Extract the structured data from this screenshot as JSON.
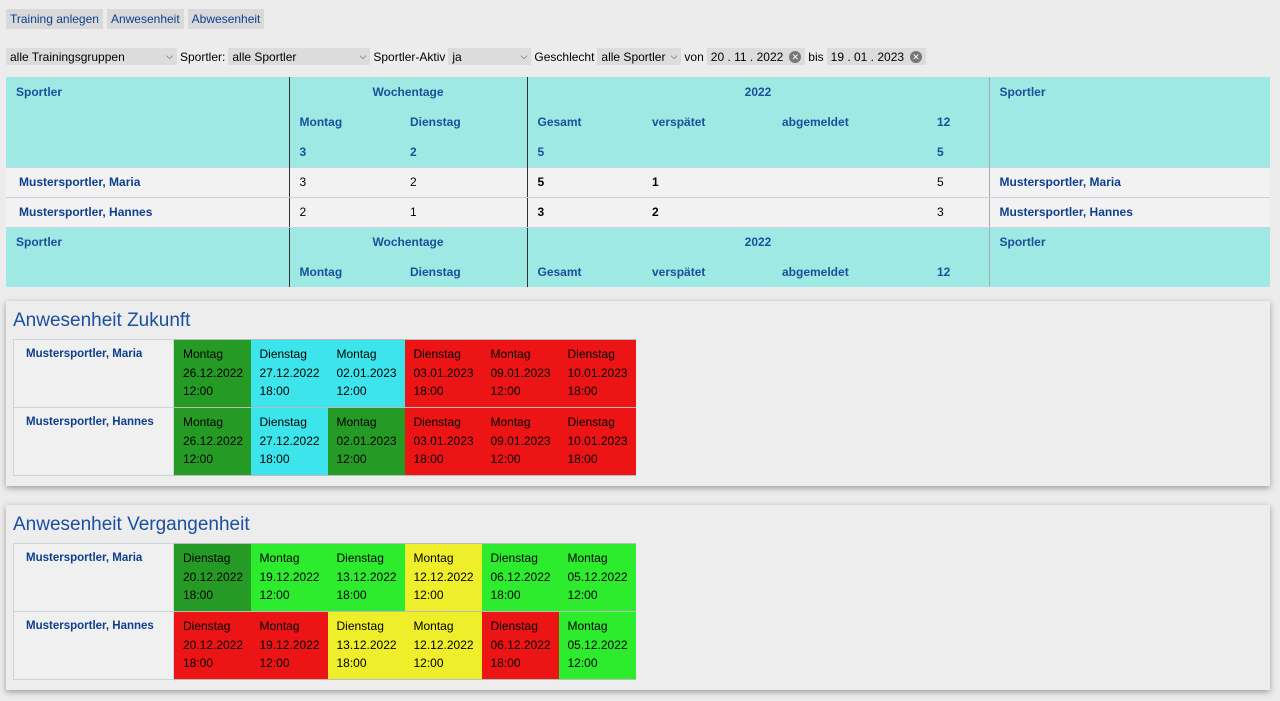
{
  "nav": {
    "buttons": [
      "Training anlegen",
      "Anwesenheit",
      "Abwesenheit"
    ]
  },
  "filters": {
    "group": "alle Trainingsgruppen",
    "sportler_label": "Sportler:",
    "sportler": "alle Sportler",
    "aktiv_label": "Sportler-Aktiv",
    "aktiv": "ja",
    "gender_label": "Geschlecht",
    "gender": "alle Sportler",
    "from_label": "von",
    "from": "20 . 11 . 2022",
    "to_label": "bis",
    "to": "19 . 01 . 2023"
  },
  "stats": {
    "header": {
      "sportler": "Sportler",
      "wochentage": "Wochentage",
      "year": "2022",
      "montag": "Montag",
      "dienstag": "Dienstag",
      "gesamt": "Gesamt",
      "verspaetet": "verspätet",
      "abgemeldet": "abgemeldet",
      "month": "12",
      "totals": {
        "montag": "3",
        "dienstag": "2",
        "gesamt": "5",
        "month": "5"
      }
    },
    "rows": [
      {
        "name": "Mustersportler, Maria",
        "montag": "3",
        "dienstag": "2",
        "gesamt": "5",
        "verspaetet": "1",
        "abgemeldet": "",
        "month": "5"
      },
      {
        "name": "Mustersportler, Hannes",
        "montag": "2",
        "dienstag": "1",
        "gesamt": "3",
        "verspaetet": "2",
        "abgemeldet": "",
        "month": "3"
      }
    ]
  },
  "future": {
    "title": "Anwesenheit Zukunft",
    "rows": [
      {
        "name": "Mustersportler, Maria",
        "slots": [
          {
            "day": "Montag",
            "date": "26.12.2022",
            "time": "12:00",
            "color": "#259b25"
          },
          {
            "day": "Dienstag",
            "date": "27.12.2022",
            "time": "18:00",
            "color": "#3be5eb"
          },
          {
            "day": "Montag",
            "date": "02.01.2023",
            "time": "12:00",
            "color": "#3be5eb"
          },
          {
            "day": "Dienstag",
            "date": "03.01.2023",
            "time": "18:00",
            "color": "#ec1414"
          },
          {
            "day": "Montag",
            "date": "09.01.2023",
            "time": "12:00",
            "color": "#ec1414"
          },
          {
            "day": "Dienstag",
            "date": "10.01.2023",
            "time": "18:00",
            "color": "#ec1414"
          }
        ]
      },
      {
        "name": "Mustersportler, Hannes",
        "slots": [
          {
            "day": "Montag",
            "date": "26.12.2022",
            "time": "12:00",
            "color": "#259b25"
          },
          {
            "day": "Dienstag",
            "date": "27.12.2022",
            "time": "18:00",
            "color": "#3be5eb"
          },
          {
            "day": "Montag",
            "date": "02.01.2023",
            "time": "12:00",
            "color": "#259b25"
          },
          {
            "day": "Dienstag",
            "date": "03.01.2023",
            "time": "18:00",
            "color": "#ec1414"
          },
          {
            "day": "Montag",
            "date": "09.01.2023",
            "time": "12:00",
            "color": "#ec1414"
          },
          {
            "day": "Dienstag",
            "date": "10.01.2023",
            "time": "18:00",
            "color": "#ec1414"
          }
        ]
      }
    ]
  },
  "past": {
    "title": "Anwesenheit Vergangenheit",
    "rows": [
      {
        "name": "Mustersportler, Maria",
        "slots": [
          {
            "day": "Dienstag",
            "date": "20.12.2022",
            "time": "18:00",
            "color": "#259b25"
          },
          {
            "day": "Montag",
            "date": "19.12.2022",
            "time": "12:00",
            "color": "#2deb2d"
          },
          {
            "day": "Dienstag",
            "date": "13.12.2022",
            "time": "18:00",
            "color": "#2deb2d"
          },
          {
            "day": "Montag",
            "date": "12.12.2022",
            "time": "12:00",
            "color": "#eeee2a"
          },
          {
            "day": "Dienstag",
            "date": "06.12.2022",
            "time": "18:00",
            "color": "#2deb2d"
          },
          {
            "day": "Montag",
            "date": "05.12.2022",
            "time": "12:00",
            "color": "#2deb2d"
          }
        ]
      },
      {
        "name": "Mustersportler, Hannes",
        "slots": [
          {
            "day": "Dienstag",
            "date": "20.12.2022",
            "time": "18:00",
            "color": "#ec1414"
          },
          {
            "day": "Montag",
            "date": "19.12.2022",
            "time": "12:00",
            "color": "#ec1414"
          },
          {
            "day": "Dienstag",
            "date": "13.12.2022",
            "time": "18:00",
            "color": "#eeee2a"
          },
          {
            "day": "Montag",
            "date": "12.12.2022",
            "time": "12:00",
            "color": "#eeee2a"
          },
          {
            "day": "Dienstag",
            "date": "06.12.2022",
            "time": "18:00",
            "color": "#ec1414"
          },
          {
            "day": "Montag",
            "date": "05.12.2022",
            "time": "12:00",
            "color": "#2deb2d"
          }
        ]
      }
    ]
  }
}
